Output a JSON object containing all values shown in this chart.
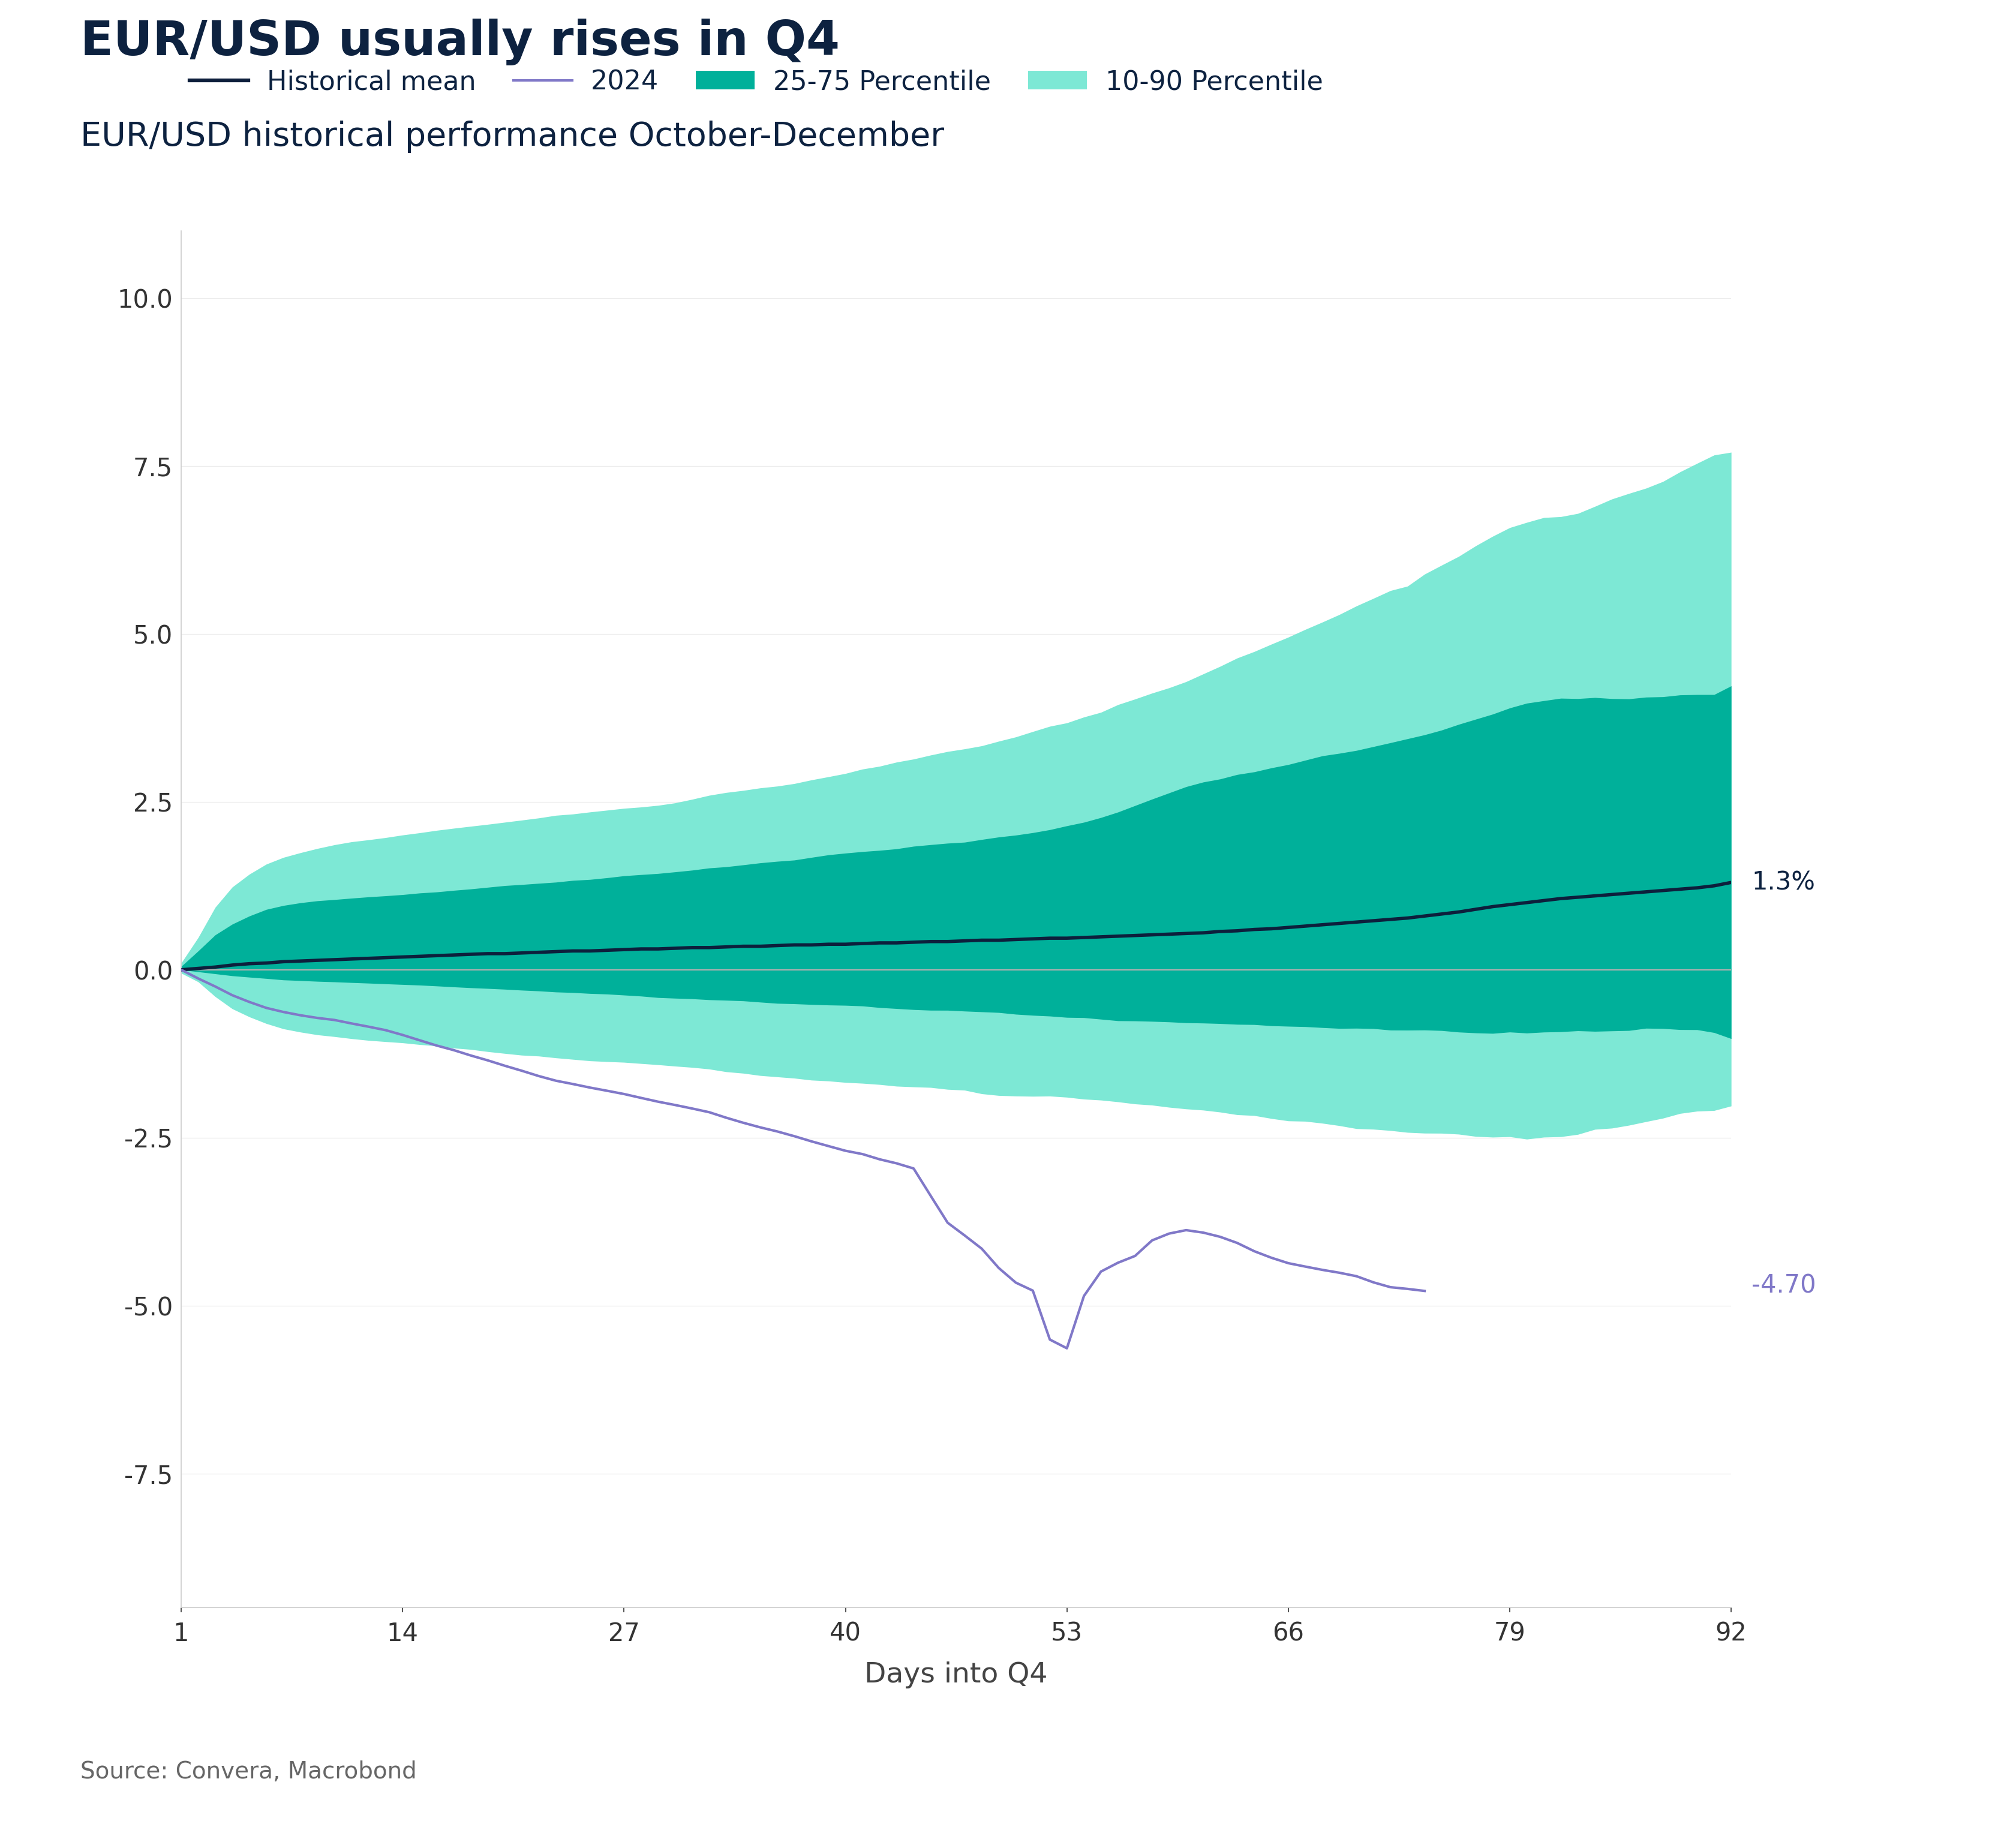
{
  "title": "EUR/USD usually rises in Q4",
  "subtitle": "EUR/USD historical performance October-December",
  "source": "Source: Convera, Macrobond",
  "xlabel": "Days into Q4",
  "title_color": "#0d2240",
  "subtitle_color": "#0d2240",
  "source_color": "#666666",
  "xlabel_color": "#444444",
  "mean_color": "#0d1f3c",
  "line_2024_color": "#8078c8",
  "band_25_75_color": "#00b09a",
  "band_10_90_color": "#7de8d5",
  "zero_line_color": "#b0b0b0",
  "label_mean_value": "1.3%",
  "label_2024_value": "-4.70",
  "label_mean_color": "#0d2240",
  "label_2024_color": "#8078c8",
  "xlim": [
    1,
    92
  ],
  "ylim": [
    -9.5,
    11.0
  ],
  "yticks": [
    -7.5,
    -5.0,
    -2.5,
    0.0,
    2.5,
    5.0,
    7.5,
    10.0
  ],
  "xticks": [
    1,
    14,
    27,
    40,
    53,
    66,
    79,
    92
  ],
  "days": [
    1,
    2,
    3,
    4,
    5,
    6,
    7,
    8,
    9,
    10,
    11,
    12,
    13,
    14,
    15,
    16,
    17,
    18,
    19,
    20,
    21,
    22,
    23,
    24,
    25,
    26,
    27,
    28,
    29,
    30,
    31,
    32,
    33,
    34,
    35,
    36,
    37,
    38,
    39,
    40,
    41,
    42,
    43,
    44,
    45,
    46,
    47,
    48,
    49,
    50,
    51,
    52,
    53,
    54,
    55,
    56,
    57,
    58,
    59,
    60,
    61,
    62,
    63,
    64,
    65,
    66,
    67,
    68,
    69,
    70,
    71,
    72,
    73,
    74,
    75,
    76,
    77,
    78,
    79,
    80,
    81,
    82,
    83,
    84,
    85,
    86,
    87,
    88,
    89,
    90,
    91,
    92
  ],
  "mean": [
    0.0,
    0.02,
    0.04,
    0.07,
    0.09,
    0.1,
    0.12,
    0.13,
    0.14,
    0.15,
    0.16,
    0.17,
    0.18,
    0.19,
    0.2,
    0.21,
    0.22,
    0.23,
    0.24,
    0.24,
    0.25,
    0.26,
    0.27,
    0.28,
    0.28,
    0.29,
    0.3,
    0.31,
    0.31,
    0.32,
    0.33,
    0.33,
    0.34,
    0.35,
    0.35,
    0.36,
    0.37,
    0.37,
    0.38,
    0.38,
    0.39,
    0.4,
    0.4,
    0.41,
    0.42,
    0.42,
    0.43,
    0.44,
    0.44,
    0.45,
    0.46,
    0.47,
    0.47,
    0.48,
    0.49,
    0.5,
    0.51,
    0.52,
    0.53,
    0.54,
    0.55,
    0.57,
    0.58,
    0.6,
    0.61,
    0.63,
    0.65,
    0.67,
    0.69,
    0.71,
    0.73,
    0.75,
    0.77,
    0.8,
    0.83,
    0.86,
    0.9,
    0.94,
    0.97,
    1.0,
    1.03,
    1.06,
    1.08,
    1.1,
    1.12,
    1.14,
    1.16,
    1.18,
    1.2,
    1.22,
    1.25,
    1.3
  ],
  "p10_raw": [
    0.0,
    -0.18,
    -0.4,
    -0.58,
    -0.7,
    -0.8,
    -0.88,
    -0.93,
    -0.97,
    -1.0,
    -1.03,
    -1.06,
    -1.08,
    -1.1,
    -1.13,
    -1.15,
    -1.18,
    -1.2,
    -1.23,
    -1.25,
    -1.28,
    -1.3,
    -1.33,
    -1.35,
    -1.37,
    -1.39,
    -1.41,
    -1.43,
    -1.46,
    -1.48,
    -1.5,
    -1.52,
    -1.55,
    -1.57,
    -1.6,
    -1.62,
    -1.65,
    -1.68,
    -1.7,
    -1.72,
    -1.74,
    -1.77,
    -1.8,
    -1.83,
    -1.85,
    -1.88,
    -1.9,
    -1.93,
    -1.95,
    -1.98,
    -2.0,
    -2.02,
    -2.05,
    -2.08,
    -2.1,
    -2.13,
    -2.16,
    -2.19,
    -2.22,
    -2.25,
    -2.28,
    -2.3,
    -2.33,
    -2.36,
    -2.39,
    -2.42,
    -2.44,
    -2.47,
    -2.5,
    -2.52,
    -2.55,
    -2.57,
    -2.6,
    -2.62,
    -2.65,
    -2.67,
    -2.7,
    -2.72,
    -2.74,
    -2.76,
    -2.73,
    -2.7,
    -2.67,
    -2.63,
    -2.6,
    -2.56,
    -2.52,
    -2.48,
    -2.44,
    -2.4,
    -2.38,
    -2.3
  ],
  "p25_raw": [
    0.0,
    -0.03,
    -0.06,
    -0.09,
    -0.11,
    -0.13,
    -0.15,
    -0.16,
    -0.17,
    -0.18,
    -0.19,
    -0.2,
    -0.21,
    -0.22,
    -0.23,
    -0.24,
    -0.25,
    -0.26,
    -0.27,
    -0.28,
    -0.29,
    -0.3,
    -0.31,
    -0.32,
    -0.33,
    -0.34,
    -0.35,
    -0.36,
    -0.37,
    -0.38,
    -0.39,
    -0.4,
    -0.41,
    -0.42,
    -0.43,
    -0.44,
    -0.45,
    -0.46,
    -0.47,
    -0.48,
    -0.49,
    -0.5,
    -0.51,
    -0.52,
    -0.53,
    -0.54,
    -0.55,
    -0.56,
    -0.57,
    -0.58,
    -0.59,
    -0.6,
    -0.61,
    -0.62,
    -0.63,
    -0.64,
    -0.65,
    -0.66,
    -0.67,
    -0.68,
    -0.69,
    -0.7,
    -0.71,
    -0.72,
    -0.73,
    -0.74,
    -0.75,
    -0.76,
    -0.77,
    -0.78,
    -0.79,
    -0.8,
    -0.81,
    -0.82,
    -0.83,
    -0.84,
    -0.85,
    -0.86,
    -0.87,
    -0.88,
    -0.87,
    -0.86,
    -0.85,
    -0.84,
    -0.83,
    -0.82,
    -0.81,
    -0.8,
    -0.79,
    -0.78,
    -0.8,
    -0.9
  ],
  "p75_raw": [
    0.0,
    0.28,
    0.52,
    0.68,
    0.8,
    0.9,
    0.96,
    1.0,
    1.03,
    1.05,
    1.07,
    1.09,
    1.11,
    1.13,
    1.15,
    1.17,
    1.19,
    1.21,
    1.23,
    1.25,
    1.27,
    1.29,
    1.31,
    1.33,
    1.35,
    1.37,
    1.39,
    1.41,
    1.43,
    1.45,
    1.47,
    1.5,
    1.52,
    1.55,
    1.57,
    1.6,
    1.62,
    1.65,
    1.68,
    1.7,
    1.73,
    1.76,
    1.79,
    1.82,
    1.85,
    1.88,
    1.91,
    1.94,
    1.98,
    2.02,
    2.06,
    2.1,
    2.15,
    2.2,
    2.28,
    2.36,
    2.44,
    2.52,
    2.6,
    2.68,
    2.76,
    2.82,
    2.88,
    2.94,
    3.0,
    3.06,
    3.12,
    3.18,
    3.24,
    3.3,
    3.36,
    3.42,
    3.48,
    3.56,
    3.64,
    3.72,
    3.8,
    3.88,
    3.96,
    4.02,
    4.05,
    4.07,
    4.08,
    4.09,
    4.1,
    4.1,
    4.1,
    4.1,
    4.1,
    4.1,
    4.12,
    4.2
  ],
  "p90_raw": [
    0.0,
    0.48,
    0.93,
    1.23,
    1.42,
    1.57,
    1.67,
    1.74,
    1.8,
    1.85,
    1.89,
    1.92,
    1.95,
    1.98,
    2.01,
    2.04,
    2.07,
    2.1,
    2.13,
    2.16,
    2.19,
    2.22,
    2.25,
    2.27,
    2.3,
    2.32,
    2.35,
    2.37,
    2.4,
    2.43,
    2.48,
    2.53,
    2.57,
    2.6,
    2.63,
    2.67,
    2.71,
    2.75,
    2.8,
    2.85,
    2.9,
    2.95,
    3.0,
    3.05,
    3.1,
    3.15,
    3.2,
    3.26,
    3.34,
    3.42,
    3.5,
    3.57,
    3.64,
    3.72,
    3.8,
    3.9,
    4.0,
    4.1,
    4.2,
    4.3,
    4.42,
    4.52,
    4.62,
    4.72,
    4.82,
    4.92,
    5.02,
    5.12,
    5.22,
    5.32,
    5.42,
    5.52,
    5.62,
    5.76,
    5.9,
    6.05,
    6.2,
    6.35,
    6.5,
    6.6,
    6.68,
    6.72,
    6.78,
    6.86,
    6.94,
    7.02,
    7.1,
    7.2,
    7.3,
    7.42,
    7.5,
    7.55
  ],
  "line_2024_raw": [
    0.0,
    -0.13,
    -0.25,
    -0.38,
    -0.48,
    -0.57,
    -0.63,
    -0.68,
    -0.72,
    -0.75,
    -0.8,
    -0.85,
    -0.9,
    -0.97,
    -1.05,
    -1.13,
    -1.2,
    -1.28,
    -1.35,
    -1.43,
    -1.5,
    -1.58,
    -1.65,
    -1.7,
    -1.75,
    -1.8,
    -1.85,
    -1.9,
    -1.95,
    -2.0,
    -2.05,
    -2.1,
    -2.18,
    -2.25,
    -2.32,
    -2.38,
    -2.45,
    -2.52,
    -2.58,
    -2.65,
    -2.7,
    -2.77,
    -2.83,
    -2.9,
    -3.3,
    -3.7,
    -3.9,
    -4.1,
    -4.38,
    -4.6,
    -4.72,
    -5.45,
    -5.58,
    -4.8,
    -4.42,
    -4.28,
    -4.18,
    -3.95,
    -3.85,
    -3.8,
    -3.82,
    -3.88,
    -3.98,
    -4.08,
    -4.18,
    -4.28,
    -4.33,
    -4.38,
    -4.43,
    -4.48,
    -4.58,
    -4.63,
    -4.65,
    -4.7,
    null,
    null,
    null,
    null,
    null,
    null,
    null,
    null,
    null,
    null,
    null,
    null,
    null,
    null,
    null,
    null,
    null,
    null
  ],
  "noise_seed": 42
}
